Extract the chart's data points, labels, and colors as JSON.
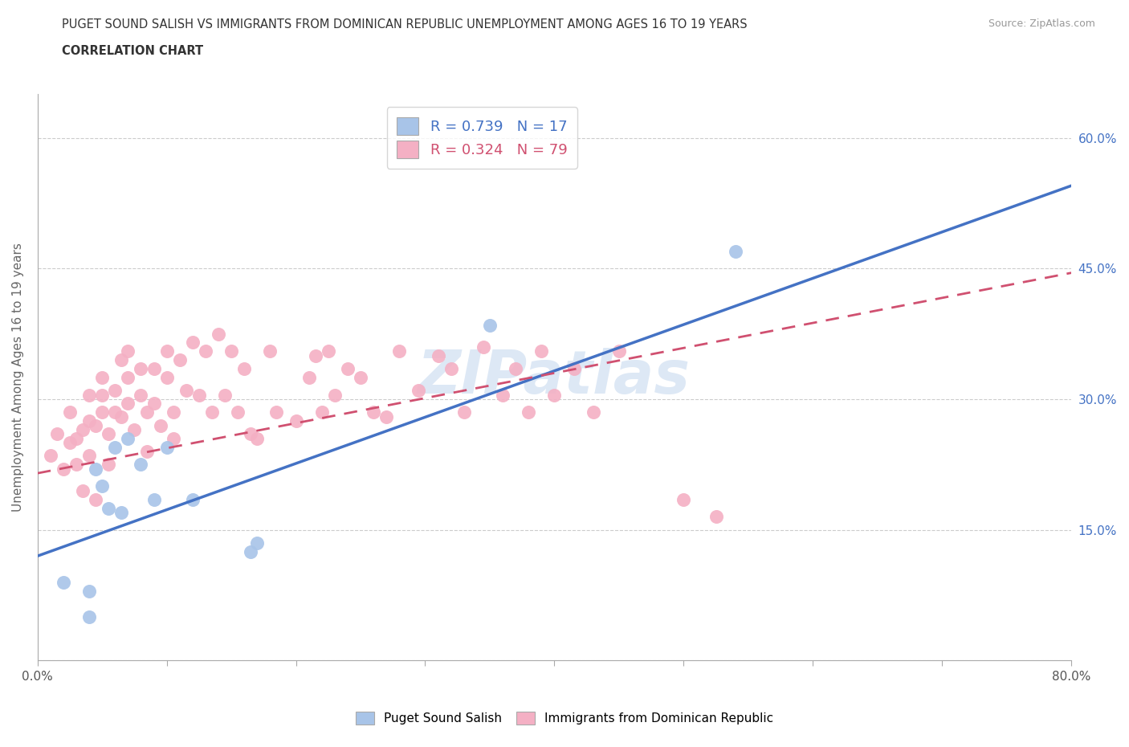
{
  "title_line1": "PUGET SOUND SALISH VS IMMIGRANTS FROM DOMINICAN REPUBLIC UNEMPLOYMENT AMONG AGES 16 TO 19 YEARS",
  "title_line2": "CORRELATION CHART",
  "source_text": "Source: ZipAtlas.com",
  "ylabel": "Unemployment Among Ages 16 to 19 years",
  "xlim": [
    0.0,
    0.8
  ],
  "ylim": [
    0.0,
    0.65
  ],
  "xtick_positions": [
    0.0,
    0.1,
    0.2,
    0.3,
    0.4,
    0.5,
    0.6,
    0.7,
    0.8
  ],
  "ytick_positions": [
    0.0,
    0.15,
    0.3,
    0.45,
    0.6
  ],
  "xtick_labels": [
    "0.0%",
    "",
    "",
    "",
    "",
    "",
    "",
    "",
    "80.0%"
  ],
  "ytick_labels_left": [
    "",
    "",
    "",
    "",
    ""
  ],
  "ytick_labels_right": [
    "",
    "15.0%",
    "30.0%",
    "45.0%",
    "60.0%"
  ],
  "blue_r": "0.739",
  "blue_n": "17",
  "pink_r": "0.324",
  "pink_n": "79",
  "blue_scatter_color": "#a8c4e8",
  "pink_scatter_color": "#f4b0c4",
  "blue_line_color": "#4472c4",
  "pink_line_color": "#d05070",
  "grid_color": "#cccccc",
  "background_color": "#ffffff",
  "watermark_text": "ZIPatlas",
  "watermark_color": "#dde8f5",
  "legend_label_blue": "Puget Sound Salish",
  "legend_label_pink": "Immigrants from Dominican Republic",
  "blue_points_x": [
    0.02,
    0.04,
    0.04,
    0.045,
    0.05,
    0.055,
    0.06,
    0.065,
    0.07,
    0.08,
    0.09,
    0.1,
    0.12,
    0.165,
    0.17,
    0.35,
    0.54
  ],
  "blue_points_y": [
    0.09,
    0.08,
    0.05,
    0.22,
    0.2,
    0.175,
    0.245,
    0.17,
    0.255,
    0.225,
    0.185,
    0.245,
    0.185,
    0.125,
    0.135,
    0.385,
    0.47
  ],
  "pink_points_x": [
    0.01,
    0.015,
    0.02,
    0.025,
    0.025,
    0.03,
    0.03,
    0.035,
    0.035,
    0.04,
    0.04,
    0.04,
    0.045,
    0.045,
    0.05,
    0.05,
    0.05,
    0.055,
    0.055,
    0.06,
    0.06,
    0.065,
    0.065,
    0.07,
    0.07,
    0.07,
    0.075,
    0.08,
    0.08,
    0.085,
    0.085,
    0.09,
    0.09,
    0.095,
    0.1,
    0.1,
    0.105,
    0.105,
    0.11,
    0.115,
    0.12,
    0.125,
    0.13,
    0.135,
    0.14,
    0.145,
    0.15,
    0.155,
    0.16,
    0.165,
    0.17,
    0.18,
    0.185,
    0.2,
    0.21,
    0.215,
    0.22,
    0.225,
    0.23,
    0.24,
    0.25,
    0.26,
    0.27,
    0.28,
    0.295,
    0.31,
    0.32,
    0.33,
    0.345,
    0.36,
    0.37,
    0.38,
    0.39,
    0.4,
    0.415,
    0.43,
    0.45,
    0.5,
    0.525
  ],
  "pink_points_y": [
    0.235,
    0.26,
    0.22,
    0.285,
    0.25,
    0.255,
    0.225,
    0.265,
    0.195,
    0.305,
    0.275,
    0.235,
    0.27,
    0.185,
    0.305,
    0.325,
    0.285,
    0.26,
    0.225,
    0.31,
    0.285,
    0.345,
    0.28,
    0.355,
    0.325,
    0.295,
    0.265,
    0.335,
    0.305,
    0.285,
    0.24,
    0.335,
    0.295,
    0.27,
    0.355,
    0.325,
    0.285,
    0.255,
    0.345,
    0.31,
    0.365,
    0.305,
    0.355,
    0.285,
    0.375,
    0.305,
    0.355,
    0.285,
    0.335,
    0.26,
    0.255,
    0.355,
    0.285,
    0.275,
    0.325,
    0.35,
    0.285,
    0.355,
    0.305,
    0.335,
    0.325,
    0.285,
    0.28,
    0.355,
    0.31,
    0.35,
    0.335,
    0.285,
    0.36,
    0.305,
    0.335,
    0.285,
    0.355,
    0.305,
    0.335,
    0.285,
    0.355,
    0.185,
    0.165
  ],
  "blue_line_x_start": 0.0,
  "blue_line_x_end": 0.8,
  "blue_line_y_start": 0.12,
  "blue_line_y_end": 0.545,
  "pink_line_x_start": 0.0,
  "pink_line_x_end": 0.8,
  "pink_line_y_start": 0.215,
  "pink_line_y_end": 0.445
}
